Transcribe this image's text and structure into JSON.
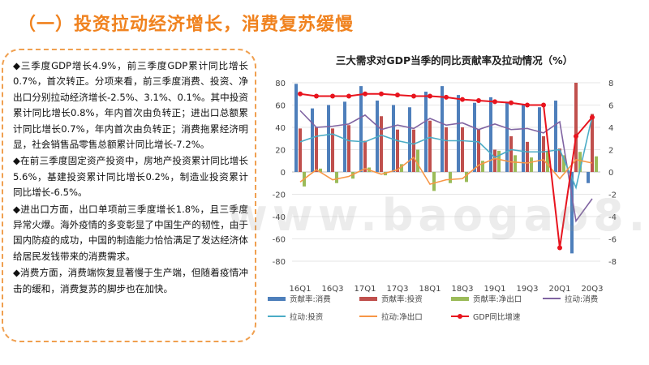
{
  "page": {
    "title": "（一）投资拉动经济增长，消费复苏缓慢",
    "watermark": "www.baogao8.com"
  },
  "textbox": {
    "paragraphs": [
      "◆三季度GDP增长4.9%，前三季度GDP累计同比增长0.7%，首次转正。分项来看，前三季度消费、投资、净出口分别拉动经济增长-2.5%、3.1%、0.1%。其中投资累计同比增长0.8%，年内首次由负转正；进出口总额累计同比增长0.7%，年内首次由负转正；消费拖累经济明显，社会销售品零售总额累计同比增长-7.2%。",
      "◆在前三季度固定资产投资中，房地产投资累计同比增长5.6%，基建投资累计同比增长0.2%，制造业投资累计同比增长-6.5%。",
      "◆进出口方面，出口单项前三季度增长1.8%，且三季度异常火爆。海外疫情的多变彰显了中国生产的韧性，由于国内防疫的成功，中国的制造能力恰恰满足了发达经济体给居民发钱带来的消费需求。",
      "◆消费方面，消费端恢复显著慢于生产端，但随着疫情冲击的缓和，消费复苏的脚步也在加快。"
    ]
  },
  "chart_data": {
    "type": "bar",
    "title": "三大需求对GDP当季的同比贡献率及拉动情况（%）",
    "x": [
      "16Q1",
      "16Q2",
      "16Q3",
      "16Q4",
      "17Q1",
      "17Q2",
      "17Q3",
      "17Q4",
      "18Q1",
      "18Q2",
      "18Q3",
      "18Q4",
      "19Q1",
      "19Q2",
      "19Q3",
      "19Q4",
      "20Q1",
      "20Q2",
      "20Q3"
    ],
    "x_tick_labels": [
      "16Q1",
      "",
      "16Q3",
      "",
      "17Q1",
      "",
      "17Q3",
      "",
      "18Q1",
      "",
      "18Q3",
      "",
      "19Q1",
      "",
      "19Q3",
      "",
      "20Q1",
      "",
      "20Q3"
    ],
    "ylim_left": [
      -80,
      80
    ],
    "ylim_right": [
      -8,
      8
    ],
    "yticks_left": [
      80,
      60,
      40,
      20,
      0,
      -20,
      -40,
      -60,
      -80
    ],
    "yticks_right": [
      8,
      6,
      4,
      2,
      0,
      -2,
      -4,
      -6,
      -8
    ],
    "grid": true,
    "legend_position": "bottom",
    "bar_series": [
      {
        "name": "贡献率:消费",
        "axis": "left",
        "color": "#4e7fbb",
        "values": [
          79,
          57,
          60,
          63,
          77,
          64,
          60,
          58,
          72,
          77,
          69,
          62,
          67,
          63,
          60,
          58,
          64,
          -73,
          -10
        ]
      },
      {
        "name": "贡献率:投资",
        "axis": "left",
        "color": "#c0504d",
        "values": [
          39,
          40,
          39,
          42,
          28,
          50,
          38,
          38,
          46,
          40,
          40,
          38,
          20,
          32,
          27,
          32,
          21,
          80,
          52
        ]
      },
      {
        "name": "贡献率:净出口",
        "axis": "left",
        "color": "#9bbb59",
        "values": [
          -13,
          3,
          -10,
          -6,
          4,
          -3,
          7,
          20,
          -17,
          -10,
          -9,
          10,
          19,
          15,
          13,
          19,
          15,
          18,
          14
        ]
      }
    ],
    "line_series": [
      {
        "name": "拉动:消费",
        "axis": "right",
        "color": "#8064a2",
        "values": [
          5.5,
          4.0,
          4.1,
          4.3,
          5.1,
          3.8,
          4.2,
          3.9,
          4.8,
          4.2,
          4.4,
          3.8,
          4.3,
          3.8,
          3.9,
          3.5,
          4.5,
          -4.4,
          -2.4
        ]
      },
      {
        "name": "拉动:投资",
        "axis": "right",
        "color": "#4bacc6",
        "values": [
          2.7,
          3.2,
          3.4,
          2.8,
          2.7,
          3.3,
          2.8,
          2.5,
          3.1,
          2.8,
          2.8,
          2.7,
          1.3,
          2.0,
          1.8,
          1.8,
          2.0,
          -1.4,
          5.0
        ]
      },
      {
        "name": "拉动:净出口",
        "axis": "right",
        "color": "#f79646",
        "values": [
          -0.9,
          0.2,
          -0.7,
          -0.4,
          0.3,
          -0.2,
          0.2,
          1.3,
          -1.1,
          -0.7,
          -0.6,
          0.6,
          1.2,
          0.9,
          0.8,
          1.1,
          -0.6,
          1.1,
          0.8
        ]
      },
      {
        "name": "GDP同比增速",
        "axis": "right",
        "color": "#e8141e",
        "markers": true,
        "values": [
          7.0,
          6.8,
          6.8,
          6.8,
          7.0,
          7.0,
          6.9,
          6.8,
          6.8,
          6.7,
          6.5,
          6.4,
          6.3,
          6.2,
          6.0,
          6.0,
          -6.8,
          3.2,
          4.9
        ]
      }
    ]
  }
}
